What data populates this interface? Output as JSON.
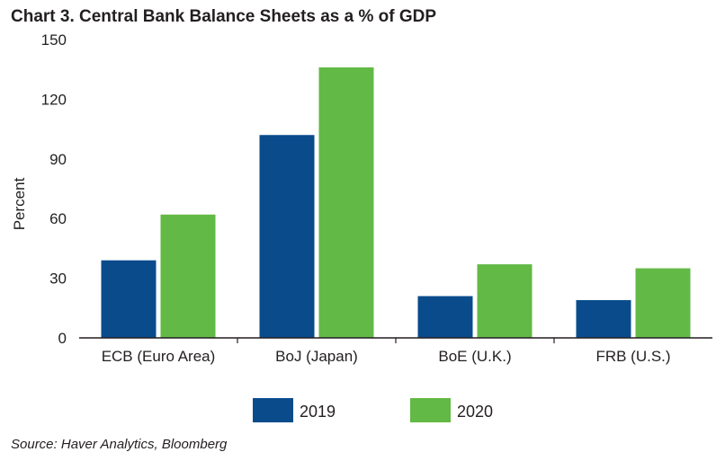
{
  "chart_data": {
    "type": "bar",
    "title": "Chart 3. Central Bank Balance Sheets as a % of GDP",
    "ylabel": "Percent",
    "xlabel": "",
    "categories": [
      "ECB (Euro Area)",
      "BoJ (Japan)",
      "BoE (U.K.)",
      "FRB (U.S.)"
    ],
    "series": [
      {
        "name": "2019",
        "color": "#0a4b8c",
        "values": [
          39,
          102,
          21,
          19
        ]
      },
      {
        "name": "2020",
        "color": "#63b946",
        "values": [
          62,
          136,
          37,
          35
        ]
      }
    ],
    "ylim": [
      0,
      150
    ],
    "yticks": [
      0,
      30,
      60,
      90,
      120,
      150
    ],
    "grid": false,
    "legend_position": "bottom"
  },
  "source": "Source: Haver Analytics, Bloomberg"
}
